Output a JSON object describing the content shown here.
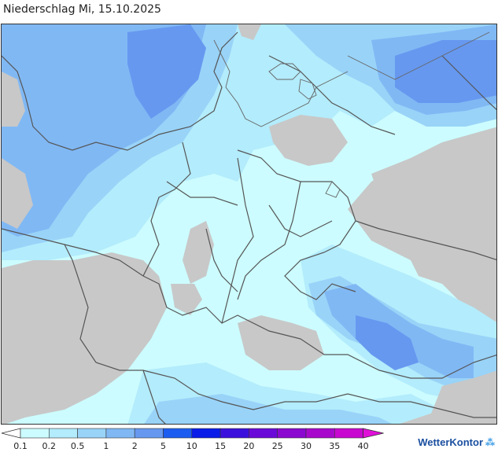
{
  "title": "Niederschlag Mi, 15.10.2025",
  "legend": {
    "labels": [
      "0.1",
      "0.2",
      "0.5",
      "1",
      "2",
      "5",
      "10",
      "15",
      "20",
      "25",
      "30",
      "35",
      "40"
    ],
    "colors": [
      "#ccfcff",
      "#b3ecfc",
      "#99d3f8",
      "#80b8f4",
      "#6698f0",
      "#1c5cf0",
      "#0a1ce8",
      "#3c10dc",
      "#6a0ad8",
      "#8a08d0",
      "#a808cc",
      "#c808d0",
      "#e010d8"
    ]
  },
  "brand": {
    "name": "WetterKontor",
    "logo_icon": "raindrops-icon"
  },
  "map": {
    "land_color": "#c8c8c8",
    "border_color": "#555555"
  }
}
